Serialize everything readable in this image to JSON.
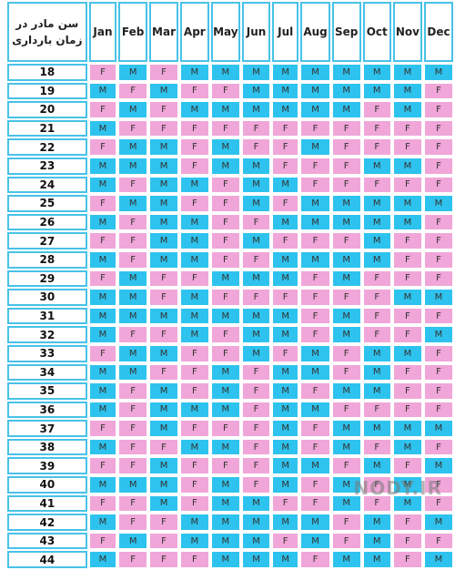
{
  "header": {
    "title": "سن مادر در زمان بارداری",
    "months": [
      "Jan",
      "Feb",
      "Mar",
      "Apr",
      "May",
      "Jun",
      "Jul",
      "Aug",
      "Sep",
      "Oct",
      "Nov",
      "Dec"
    ]
  },
  "rows": [
    {
      "age": "18",
      "cells": [
        "F",
        "M",
        "F",
        "M",
        "M",
        "M",
        "M",
        "M",
        "M",
        "M",
        "M",
        "M"
      ]
    },
    {
      "age": "19",
      "cells": [
        "M",
        "F",
        "M",
        "F",
        "F",
        "M",
        "M",
        "M",
        "M",
        "M",
        "M",
        "F"
      ]
    },
    {
      "age": "20",
      "cells": [
        "F",
        "M",
        "F",
        "M",
        "M",
        "M",
        "M",
        "M",
        "M",
        "F",
        "M",
        "F"
      ]
    },
    {
      "age": "21",
      "cells": [
        "M",
        "F",
        "F",
        "F",
        "F",
        "F",
        "F",
        "F",
        "F",
        "F",
        "F",
        "F"
      ]
    },
    {
      "age": "22",
      "cells": [
        "F",
        "M",
        "M",
        "F",
        "M",
        "F",
        "F",
        "M",
        "F",
        "F",
        "F",
        "F"
      ]
    },
    {
      "age": "23",
      "cells": [
        "M",
        "M",
        "M",
        "F",
        "M",
        "M",
        "F",
        "F",
        "F",
        "M",
        "M",
        "F"
      ]
    },
    {
      "age": "24",
      "cells": [
        "M",
        "F",
        "M",
        "M",
        "F",
        "M",
        "M",
        "F",
        "F",
        "F",
        "F",
        "F"
      ]
    },
    {
      "age": "25",
      "cells": [
        "F",
        "M",
        "M",
        "F",
        "F",
        "M",
        "F",
        "M",
        "M",
        "M",
        "M",
        "M"
      ]
    },
    {
      "age": "26",
      "cells": [
        "M",
        "F",
        "M",
        "M",
        "F",
        "F",
        "M",
        "M",
        "M",
        "M",
        "M",
        "F"
      ]
    },
    {
      "age": "27",
      "cells": [
        "F",
        "F",
        "M",
        "M",
        "F",
        "M",
        "F",
        "F",
        "F",
        "M",
        "F",
        "F"
      ]
    },
    {
      "age": "28",
      "cells": [
        "M",
        "F",
        "M",
        "M",
        "F",
        "F",
        "M",
        "M",
        "M",
        "M",
        "F",
        "F"
      ]
    },
    {
      "age": "29",
      "cells": [
        "F",
        "M",
        "F",
        "F",
        "M",
        "M",
        "M",
        "F",
        "M",
        "F",
        "F",
        "F"
      ]
    },
    {
      "age": "30",
      "cells": [
        "M",
        "M",
        "F",
        "M",
        "F",
        "F",
        "F",
        "F",
        "F",
        "F",
        "M",
        "M"
      ]
    },
    {
      "age": "31",
      "cells": [
        "M",
        "M",
        "M",
        "M",
        "M",
        "M",
        "M",
        "F",
        "M",
        "F",
        "F",
        "F"
      ]
    },
    {
      "age": "32",
      "cells": [
        "M",
        "F",
        "F",
        "M",
        "F",
        "M",
        "M",
        "F",
        "M",
        "F",
        "F",
        "M"
      ]
    },
    {
      "age": "33",
      "cells": [
        "F",
        "M",
        "M",
        "F",
        "F",
        "M",
        "F",
        "M",
        "F",
        "M",
        "M",
        "F"
      ]
    },
    {
      "age": "34",
      "cells": [
        "M",
        "M",
        "F",
        "F",
        "M",
        "F",
        "M",
        "M",
        "F",
        "M",
        "F",
        "F"
      ]
    },
    {
      "age": "35",
      "cells": [
        "M",
        "F",
        "M",
        "F",
        "M",
        "F",
        "M",
        "F",
        "M",
        "M",
        "F",
        "F"
      ]
    },
    {
      "age": "36",
      "cells": [
        "M",
        "F",
        "M",
        "M",
        "M",
        "F",
        "M",
        "M",
        "F",
        "F",
        "F",
        "F"
      ]
    },
    {
      "age": "37",
      "cells": [
        "F",
        "F",
        "M",
        "F",
        "F",
        "F",
        "M",
        "F",
        "M",
        "M",
        "M",
        "M"
      ]
    },
    {
      "age": "38",
      "cells": [
        "M",
        "F",
        "F",
        "M",
        "M",
        "F",
        "M",
        "F",
        "M",
        "F",
        "M",
        "F"
      ]
    },
    {
      "age": "39",
      "cells": [
        "F",
        "F",
        "M",
        "F",
        "F",
        "F",
        "M",
        "M",
        "F",
        "M",
        "F",
        "M"
      ]
    },
    {
      "age": "40",
      "cells": [
        "M",
        "M",
        "M",
        "F",
        "M",
        "F",
        "M",
        "F",
        "M",
        "F",
        "M",
        "F"
      ]
    },
    {
      "age": "41",
      "cells": [
        "F",
        "F",
        "M",
        "F",
        "M",
        "M",
        "F",
        "F",
        "M",
        "F",
        "M",
        "F"
      ]
    },
    {
      "age": "42",
      "cells": [
        "M",
        "F",
        "F",
        "M",
        "M",
        "M",
        "M",
        "M",
        "F",
        "M",
        "F",
        "M"
      ]
    },
    {
      "age": "43",
      "cells": [
        "F",
        "M",
        "F",
        "M",
        "M",
        "M",
        "F",
        "M",
        "F",
        "M",
        "F",
        "F"
      ]
    },
    {
      "age": "44",
      "cells": [
        "M",
        "F",
        "F",
        "F",
        "M",
        "M",
        "M",
        "F",
        "M",
        "M",
        "F",
        "M"
      ]
    }
  ],
  "watermark": "NODY.IR"
}
